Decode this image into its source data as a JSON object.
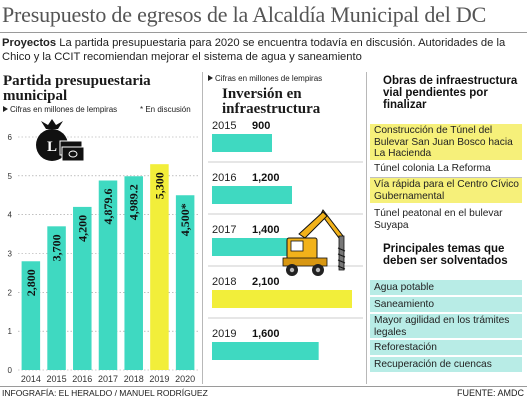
{
  "header": {
    "title": "Presupuesto de egresos de la Alcaldía Municipal del DC",
    "intro_bold": "Proyectos",
    "intro_text": " La partida presupuestaria para 2020 se encuentra todavía en discusión. Autoridades de la Chico y la CCIT recomiendan mejorar el sistema de agua y saneamiento"
  },
  "left_panel": {
    "title": "Partida presupuestaria municipal",
    "subtitle": "Cifras en millones de lempiras",
    "note": "* En discusión"
  },
  "middle_panel": {
    "subtitle": "Cifras en millones de lempiras",
    "title": "Inversión en infraestructura"
  },
  "chart_data": [
    {
      "type": "bar",
      "title": "Partida presupuestaria municipal",
      "ylabel": "Cifras en millones de lempiras",
      "categories": [
        "2014",
        "2015",
        "2016",
        "2017",
        "2018",
        "2019",
        "2020"
      ],
      "values": [
        2.8,
        3.7,
        4.2,
        4.8796,
        4.9892,
        5.3,
        4.5
      ],
      "data_labels": [
        "2,800",
        "3,700",
        "4,200",
        "4,879.6",
        "4,989.2",
        "5,300",
        "4,500*"
      ],
      "highlight_index": 5,
      "annotation": "* En discusión",
      "ylim": [
        0,
        6
      ],
      "yticks": [
        "0",
        "1",
        "2",
        "3",
        "4",
        "5",
        "6"
      ],
      "grid": true,
      "colors": {
        "bar": "#3fd9c1",
        "highlight": "#f2ee3a",
        "grid": "#9a9a9a"
      }
    },
    {
      "type": "bar",
      "orientation": "horizontal",
      "title": "Inversión en infraestructura",
      "subtitle": "Cifras en millones de lempiras",
      "categories": [
        "2015",
        "2016",
        "2017",
        "2018",
        "2019"
      ],
      "values": [
        900,
        1200,
        1400,
        2100,
        1600
      ],
      "data_labels": [
        "900",
        "1,200",
        "1,400",
        "2,100",
        "1,600"
      ],
      "highlight_index": 3,
      "colors": {
        "bar": "#3fd9c1",
        "highlight": "#f2ee3a"
      }
    }
  ],
  "right_panel": {
    "pending_title": "Obras de infraestructura vial  pendientes por finalizar",
    "pending": [
      {
        "text": "Construcción de Túnel del Bulevar San Juan Bosco hacia La Hacienda"
      },
      {
        "text": "Túnel colonia La Reforma"
      },
      {
        "text": "Vía rápida para el Centro Cívico Gubernamental"
      },
      {
        "text": "Túnel peatonal en el bulevar Suyapa"
      }
    ],
    "topics_title": "Principales temas que deben ser solventados",
    "topics": [
      {
        "text": "Agua potable"
      },
      {
        "text": "Saneamiento"
      },
      {
        "text": "Mayor agilidad en los trámites legales"
      },
      {
        "text": "Reforestación"
      },
      {
        "text": "Recuperación de cuencas"
      }
    ],
    "colors": {
      "yellow": "#f6f07a",
      "turquoise": "#b8ece6"
    }
  },
  "footer": {
    "credit": "INFOGRAFÍA: EL HERALDO / MANUEL RODRÍGUEZ",
    "source": "FUENTE: AMDC"
  },
  "icons": [
    "money-bag-icon",
    "excavator-icon"
  ]
}
